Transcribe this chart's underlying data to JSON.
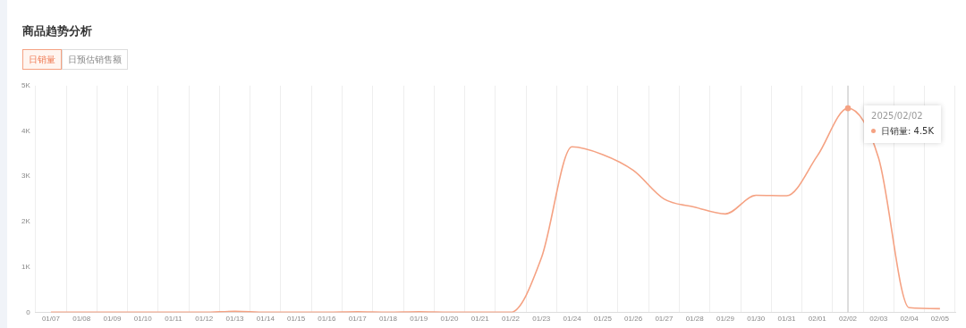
{
  "chart_data": {
    "type": "line",
    "title": "商品趋势分析",
    "categories": [
      "01/07",
      "01/08",
      "01/09",
      "01/10",
      "01/11",
      "01/12",
      "01/13",
      "01/14",
      "01/15",
      "01/16",
      "01/17",
      "01/18",
      "01/19",
      "01/20",
      "01/21",
      "01/22",
      "01/23",
      "01/24",
      "01/25",
      "01/26",
      "01/27",
      "01/28",
      "01/29",
      "01/30",
      "01/31",
      "02/01",
      "02/02",
      "02/03",
      "02/04",
      "02/05"
    ],
    "series": [
      {
        "name": "日销量",
        "color": "#f5a283",
        "values": [
          0,
          0,
          0,
          0,
          0,
          0,
          20,
          0,
          0,
          0,
          10,
          0,
          10,
          0,
          0,
          0,
          1200,
          3650,
          3480,
          3130,
          2500,
          2320,
          2170,
          2580,
          2570,
          3450,
          4500,
          3400,
          100,
          80
        ]
      }
    ],
    "ylim": [
      0,
      5000
    ],
    "yticks": [
      {
        "value": 0,
        "label": "0"
      },
      {
        "value": 1000,
        "label": "1K"
      },
      {
        "value": 2000,
        "label": "2K"
      },
      {
        "value": 3000,
        "label": "3K"
      },
      {
        "value": 4000,
        "label": "4K"
      },
      {
        "value": 5000,
        "label": "5K"
      }
    ],
    "grid": "x",
    "legend": "top right",
    "marker": "none",
    "line_style": "solid",
    "ref_lines": [
      {
        "axis": "x",
        "value": "02/02",
        "color": "#bbbbbb"
      }
    ],
    "annotations": [
      "日销量",
      "日预估销售额",
      "2025/02/02",
      ":",
      "4.5K"
    ]
  }
}
